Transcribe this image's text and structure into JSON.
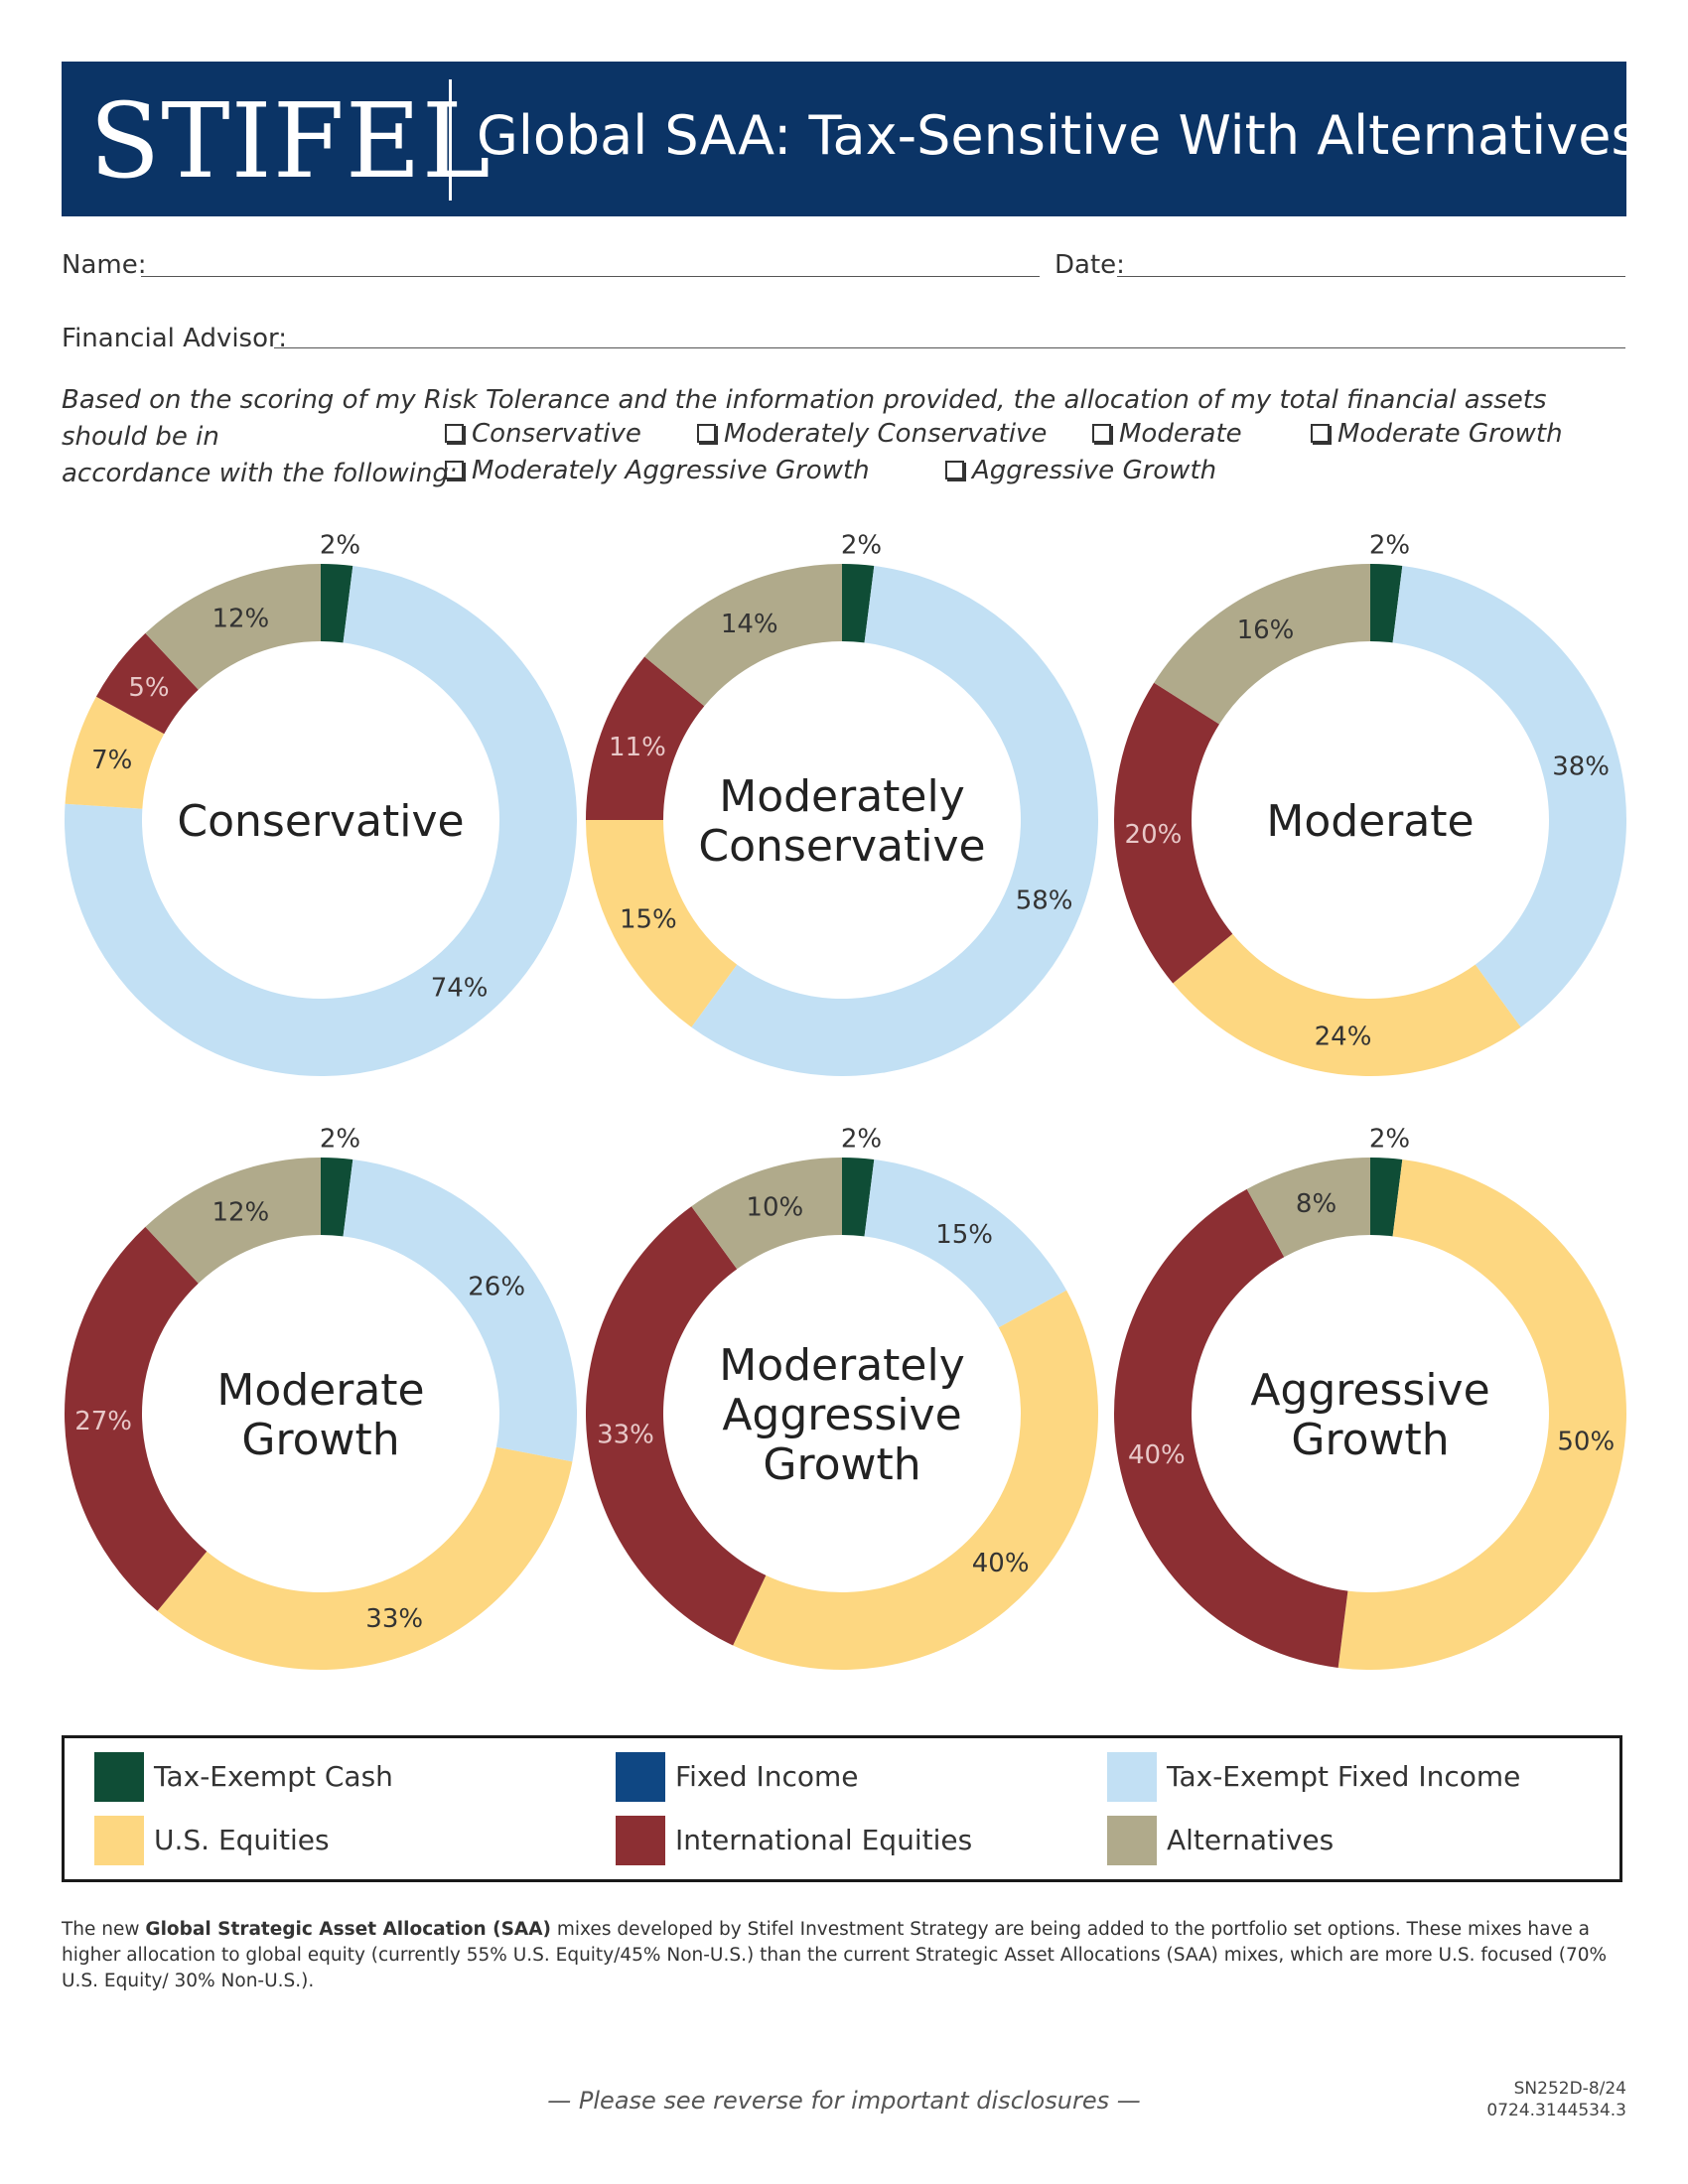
{
  "header": {
    "logo": "STIFEL",
    "title": "Global SAA:  Tax-Sensitive With Alternatives",
    "colors": {
      "banner": "#0b3466"
    }
  },
  "form": {
    "name_label": "Name:",
    "date_label": "Date:",
    "advisor_label": "Financial Advisor:"
  },
  "intro": {
    "text_line1": "Based on the scoring of my Risk Tolerance and the information provided, the allocation of my total financial assets should be in",
    "text_line2": "accordance with the following:",
    "options": [
      "Conservative",
      "Moderately Conservative",
      "Moderate",
      "Moderate Growth",
      "Moderately Aggressive Growth",
      "Aggressive Growth"
    ]
  },
  "colors": {
    "Tax-Exempt Cash": "#0f4d36",
    "Fixed Income": "#0f4783",
    "Tax-Exempt Fixed Income": "#c2e0f4",
    "U.S. Equities": "#fdd781",
    "International Equities": "#8c2f33",
    "Alternatives": "#b0aa8b"
  },
  "chart_data": [
    {
      "type": "pie",
      "donut": true,
      "center_label": [
        "Conservative"
      ],
      "slices": [
        {
          "category": "Tax-Exempt Cash",
          "value": 2,
          "label": "2%"
        },
        {
          "category": "Tax-Exempt Fixed Income",
          "value": 74,
          "label": "74%"
        },
        {
          "category": "U.S. Equities",
          "value": 7,
          "label": "7%"
        },
        {
          "category": "International Equities",
          "value": 5,
          "label": "5%"
        },
        {
          "category": "Alternatives",
          "value": 12,
          "label": "12%"
        }
      ]
    },
    {
      "type": "pie",
      "donut": true,
      "center_label": [
        "Moderately",
        "Conservative"
      ],
      "slices": [
        {
          "category": "Tax-Exempt Cash",
          "value": 2,
          "label": "2%"
        },
        {
          "category": "Tax-Exempt Fixed Income",
          "value": 58,
          "label": "58%"
        },
        {
          "category": "U.S. Equities",
          "value": 15,
          "label": "15%"
        },
        {
          "category": "International Equities",
          "value": 11,
          "label": "11%"
        },
        {
          "category": "Alternatives",
          "value": 14,
          "label": "14%"
        }
      ]
    },
    {
      "type": "pie",
      "donut": true,
      "center_label": [
        "Moderate"
      ],
      "slices": [
        {
          "category": "Tax-Exempt Cash",
          "value": 2,
          "label": "2%"
        },
        {
          "category": "Tax-Exempt Fixed Income",
          "value": 38,
          "label": "38%"
        },
        {
          "category": "U.S. Equities",
          "value": 24,
          "label": "24%"
        },
        {
          "category": "International Equities",
          "value": 20,
          "label": "20%"
        },
        {
          "category": "Alternatives",
          "value": 16,
          "label": "16%"
        }
      ]
    },
    {
      "type": "pie",
      "donut": true,
      "center_label": [
        "Moderate",
        "Growth"
      ],
      "slices": [
        {
          "category": "Tax-Exempt Cash",
          "value": 2,
          "label": "2%"
        },
        {
          "category": "Tax-Exempt Fixed Income",
          "value": 26,
          "label": "26%"
        },
        {
          "category": "U.S. Equities",
          "value": 33,
          "label": "33%"
        },
        {
          "category": "International Equities",
          "value": 27,
          "label": "27%"
        },
        {
          "category": "Alternatives",
          "value": 12,
          "label": "12%"
        }
      ]
    },
    {
      "type": "pie",
      "donut": true,
      "center_label": [
        "Moderately",
        "Aggressive",
        "Growth"
      ],
      "slices": [
        {
          "category": "Tax-Exempt Cash",
          "value": 2,
          "label": "2%"
        },
        {
          "category": "Tax-Exempt Fixed Income",
          "value": 15,
          "label": "15%"
        },
        {
          "category": "U.S. Equities",
          "value": 40,
          "label": "40%"
        },
        {
          "category": "International Equities",
          "value": 33,
          "label": "33%"
        },
        {
          "category": "Alternatives",
          "value": 10,
          "label": "10%"
        }
      ]
    },
    {
      "type": "pie",
      "donut": true,
      "center_label": [
        "Aggressive",
        "Growth"
      ],
      "slices": [
        {
          "category": "Tax-Exempt Cash",
          "value": 2,
          "label": "2%"
        },
        {
          "category": "U.S. Equities",
          "value": 50,
          "label": "50%"
        },
        {
          "category": "International Equities",
          "value": 40,
          "label": "40%"
        },
        {
          "category": "Alternatives",
          "value": 8,
          "label": "8%"
        }
      ]
    }
  ],
  "legend": {
    "items": [
      "Tax-Exempt Cash",
      "Fixed Income",
      "Tax-Exempt Fixed Income",
      "U.S. Equities",
      "International Equities",
      "Alternatives"
    ]
  },
  "footnote": {
    "prefix": "The new ",
    "bold": "Global Strategic Asset Allocation (SAA)",
    "rest": " mixes developed by Stifel Investment Strategy are being added to the portfolio set options.  These mixes have a higher allocation to global equity (currently 55% U.S. Equity/45% Non-U.S.) than the current Strategic Asset Allocations (SAA) mixes, which are more U.S. focused (70% U.S. Equity/ 30% Non-U.S.)."
  },
  "footer": {
    "disclosure": "— Please see reverse for important disclosures —",
    "code1": "SN252D-8/24",
    "code2": "0724.3144534.3"
  }
}
